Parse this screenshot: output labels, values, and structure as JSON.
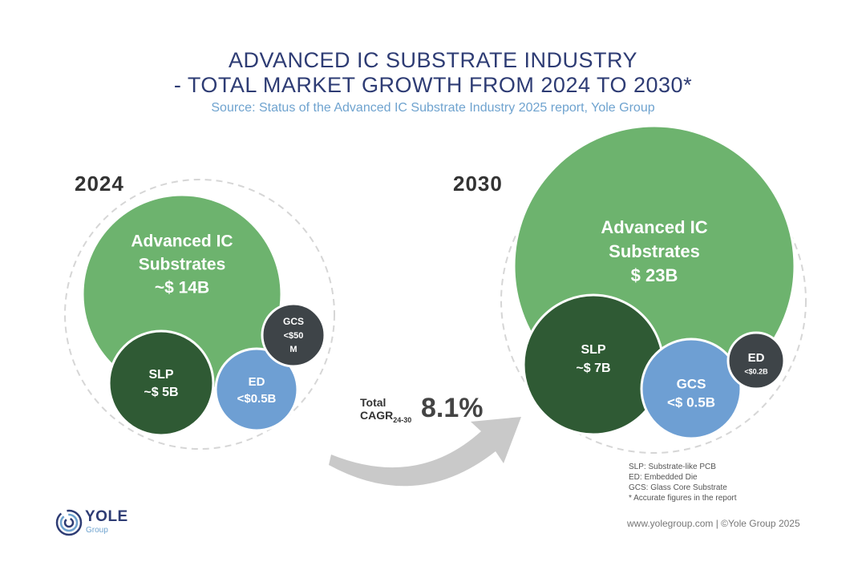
{
  "header": {
    "title_line1": "ADVANCED IC SUBSTRATE INDUSTRY",
    "title_line2": "- TOTAL MARKET GROWTH FROM 2024 TO 2030*",
    "source": "Source: Status of the Advanced IC Substrate Industry 2025 report, Yole Group"
  },
  "chart_data": {
    "type": "bubble",
    "title": "ADVANCED IC SUBSTRATE INDUSTRY - TOTAL MARKET GROWTH FROM 2024 TO 2030*",
    "years": [
      {
        "year": "2024",
        "segments": [
          {
            "key": "advanced_ic",
            "lines": [
              "Advanced IC",
              "Substrates",
              "~$ 14B"
            ],
            "value_busd": 14,
            "color": "#6db36e"
          },
          {
            "key": "slp",
            "lines": [
              "SLP",
              "~$ 5B"
            ],
            "value_busd": 5,
            "color": "#2f5a34"
          },
          {
            "key": "ed",
            "lines": [
              "ED",
              "<$0.5B"
            ],
            "value_busd": 0.5,
            "color": "#6e9fd3"
          },
          {
            "key": "gcs",
            "lines": [
              "GCS",
              "<$50",
              "M"
            ],
            "value_busd": 0.05,
            "color": "#3e4448"
          }
        ]
      },
      {
        "year": "2030",
        "segments": [
          {
            "key": "advanced_ic",
            "lines": [
              "Advanced IC",
              "Substrates",
              "$ 23B"
            ],
            "value_busd": 23,
            "color": "#6db36e"
          },
          {
            "key": "slp",
            "lines": [
              "SLP",
              "~$ 7B"
            ],
            "value_busd": 7,
            "color": "#2f5a34"
          },
          {
            "key": "gcs",
            "lines": [
              "GCS",
              "<$ 0.5B"
            ],
            "value_busd": 0.5,
            "color": "#6e9fd3"
          },
          {
            "key": "ed",
            "lines": [
              "ED",
              "<$0.2B"
            ],
            "value_busd": 0.2,
            "color": "#3e4448"
          }
        ]
      }
    ],
    "cagr": {
      "label_line1": "Total",
      "label_line2": "CAGR",
      "subscript": "24-30",
      "value": "8.1%"
    }
  },
  "legend": [
    "SLP: Substrate-like PCB",
    "ED: Embedded Die",
    "GCS: Glass Core Substrate",
    "* Accurate figures in the report"
  ],
  "branding": {
    "logo_word": "YOLE",
    "logo_sub": "Group"
  },
  "footer": "www.yolegroup.com | ©Yole Group 2025",
  "colors": {
    "title": "#2e3c74",
    "source": "#6fa3cf",
    "dashed_ring": "#d6d6d6",
    "arrow": "#c9c9c9"
  }
}
